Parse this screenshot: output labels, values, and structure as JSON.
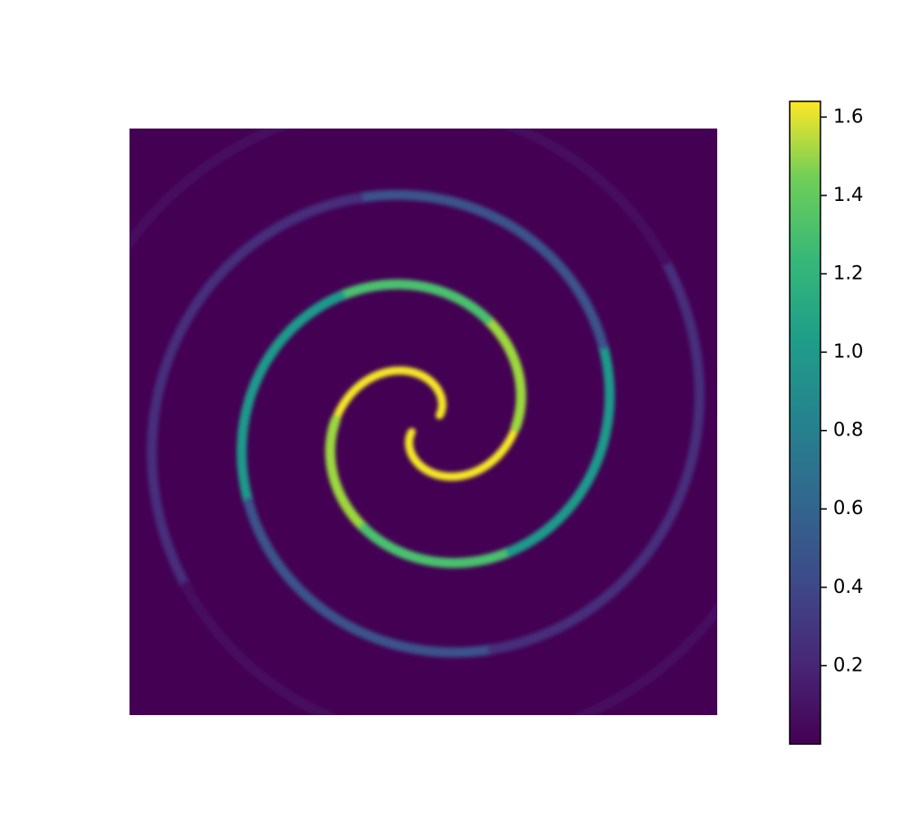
{
  "chart_data": {
    "type": "heatmap",
    "colormap": "viridis",
    "clim": [
      0,
      1.64
    ],
    "cticks": [
      0.2,
      0.4,
      0.6,
      0.8,
      {
        "value": 1.0,
        "label": "1.0"
      },
      1.2,
      1.4,
      1.6
    ]
  }
}
